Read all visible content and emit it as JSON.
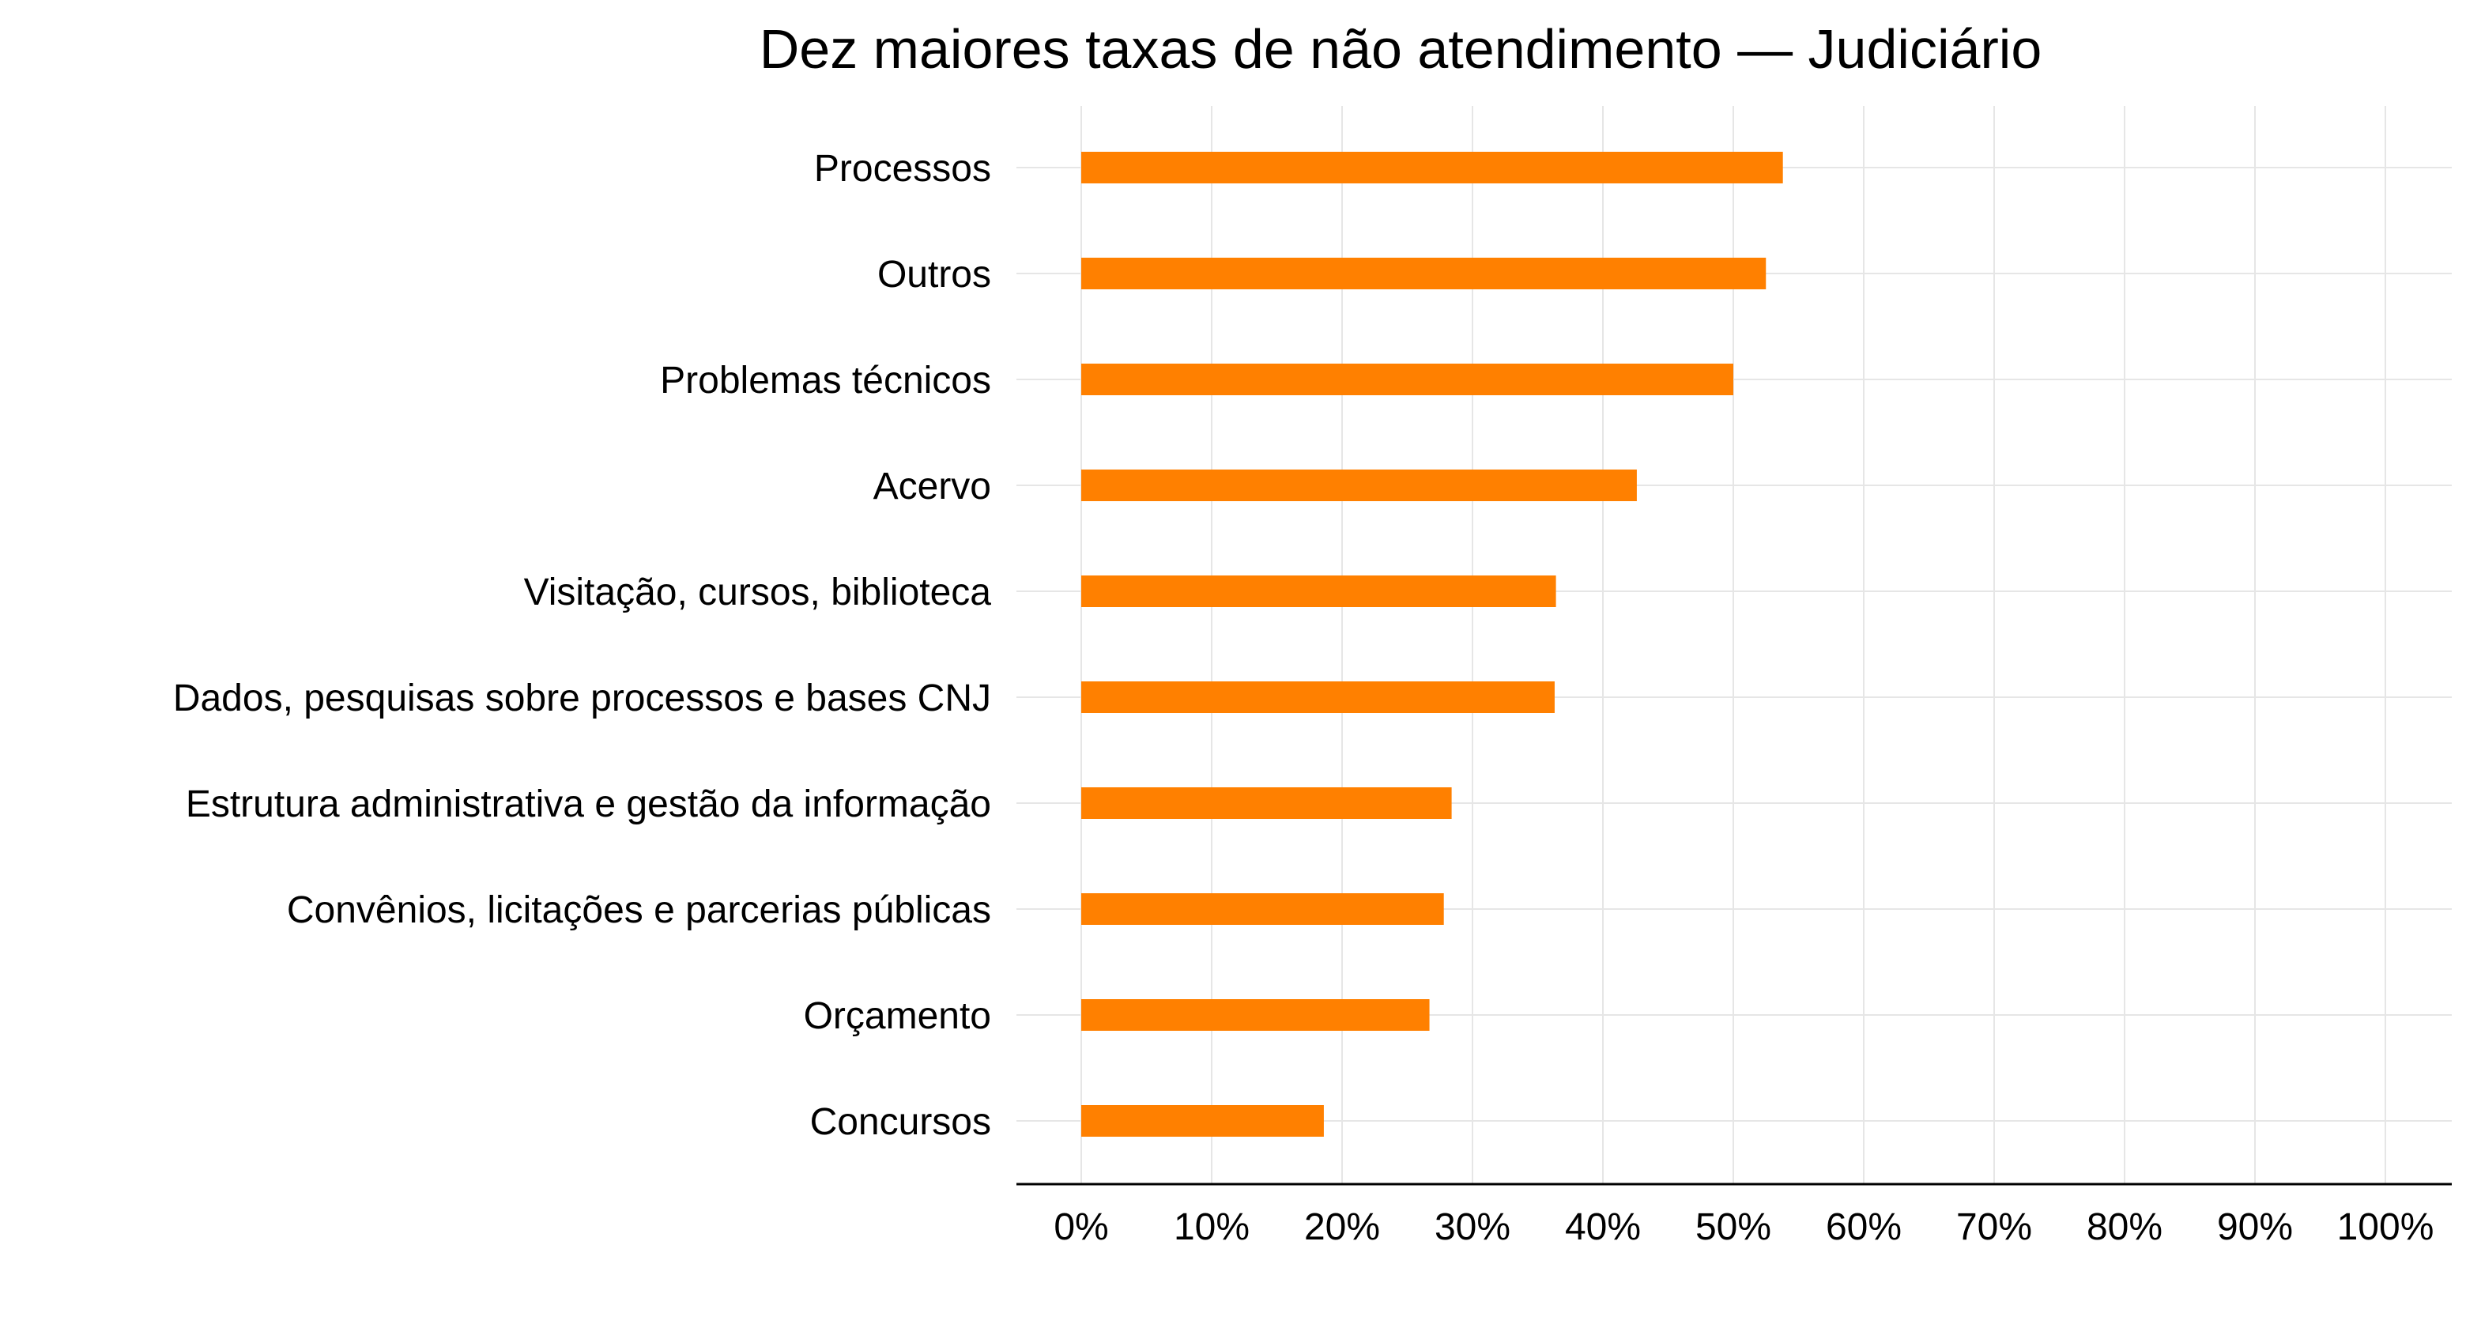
{
  "chart_data": {
    "type": "bar",
    "orientation": "horizontal",
    "title": "Dez maiores taxas de não atendimento — Judiciário",
    "xlabel": "",
    "ylabel": "",
    "categories": [
      "Processos",
      "Outros",
      "Problemas técnicos",
      "Acervo",
      "Visitação, cursos, biblioteca",
      "Dados, pesquisas sobre processos e bases CNJ",
      "Estrutura administrativa e gestão da informação",
      "Convênios, licitações e parcerias públicas",
      "Orçamento",
      "Concursos"
    ],
    "values": [
      53.8,
      52.5,
      50.0,
      42.6,
      36.4,
      36.3,
      28.4,
      27.8,
      26.7,
      18.6
    ],
    "xlim": [
      0,
      100
    ],
    "ticks": [
      0,
      10,
      20,
      30,
      40,
      50,
      60,
      70,
      80,
      90,
      100
    ],
    "tick_labels": [
      "0%",
      "10%",
      "20%",
      "30%",
      "40%",
      "50%",
      "60%",
      "70%",
      "80%",
      "90%",
      "100%"
    ],
    "grid": true,
    "legend": "none",
    "colors": {
      "bar": "#ff8000"
    }
  }
}
